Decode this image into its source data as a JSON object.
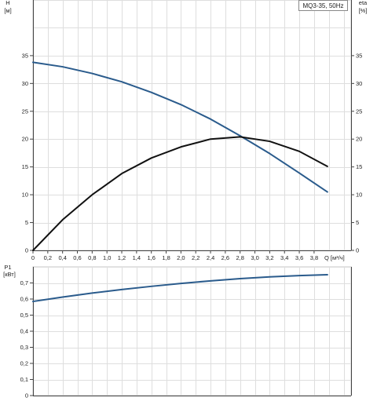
{
  "chart_data": [
    {
      "type": "line",
      "title": "",
      "legend_box": "MQ3-35, 50Hz",
      "x": {
        "label": "Q [м³/ч]",
        "min": 0,
        "max": 4.3,
        "ticks": [
          0,
          0.2,
          0.4,
          0.6,
          0.8,
          1.0,
          1.2,
          1.4,
          1.6,
          1.8,
          2.0,
          2.2,
          2.4,
          2.6,
          2.8,
          3.0,
          3.2,
          3.4,
          3.6,
          3.8
        ],
        "tick_labels": [
          "0",
          "0,2",
          "0,4",
          "0,6",
          "0,8",
          "1,0",
          "1,2",
          "1,4",
          "1,6",
          "1,8",
          "2,0",
          "2,2",
          "2,4",
          "2,6",
          "2,8",
          "3,0",
          "3,2",
          "3,4",
          "3,6",
          "3,8"
        ]
      },
      "y_left": {
        "label_top": "H",
        "label_unit": "[м]",
        "min": 0,
        "max": 45,
        "ticks": [
          0,
          5,
          10,
          15,
          20,
          25,
          30,
          35
        ],
        "tick_labels": [
          "0",
          "5",
          "10",
          "15",
          "20",
          "25",
          "30",
          "35"
        ]
      },
      "y_right": {
        "label_top": "eta",
        "label_unit": "[%]",
        "min": 0,
        "max": 45,
        "ticks": [
          0,
          5,
          10,
          15,
          20,
          25,
          30,
          35
        ],
        "tick_labels": [
          "0",
          "5",
          "10",
          "15",
          "20",
          "25",
          "30",
          "35"
        ]
      },
      "grid": true,
      "series": [
        {
          "key": "H",
          "axis": "left",
          "color": "#2a5b8c",
          "points": [
            [
              0,
              33.8
            ],
            [
              0.4,
              33.0
            ],
            [
              0.8,
              31.8
            ],
            [
              1.2,
              30.3
            ],
            [
              1.6,
              28.4
            ],
            [
              2.0,
              26.2
            ],
            [
              2.4,
              23.6
            ],
            [
              2.8,
              20.6
            ],
            [
              3.2,
              17.4
            ],
            [
              3.6,
              13.9
            ],
            [
              3.98,
              10.5
            ]
          ]
        },
        {
          "key": "eta",
          "axis": "right",
          "color": "#111111",
          "points": [
            [
              0,
              0.0
            ],
            [
              0.4,
              5.5
            ],
            [
              0.8,
              10.0
            ],
            [
              1.2,
              13.8
            ],
            [
              1.6,
              16.6
            ],
            [
              2.0,
              18.6
            ],
            [
              2.4,
              20.0
            ],
            [
              2.8,
              20.4
            ],
            [
              3.2,
              19.6
            ],
            [
              3.6,
              17.8
            ],
            [
              3.98,
              15.1
            ]
          ]
        }
      ]
    },
    {
      "type": "line",
      "title": "",
      "x": {
        "min": 0,
        "max": 4.3
      },
      "y_left": {
        "label_top": "P1",
        "label_unit": "[кВт]",
        "min": 0,
        "max": 0.8,
        "ticks": [
          0,
          0.1,
          0.2,
          0.3,
          0.4,
          0.5,
          0.6,
          0.7
        ],
        "tick_labels": [
          "0",
          "0,1",
          "0,2",
          "0,3",
          "0,4",
          "0,5",
          "0,6",
          "0,7"
        ]
      },
      "grid": true,
      "series": [
        {
          "key": "P1",
          "axis": "left",
          "color": "#2a5b8c",
          "points": [
            [
              0,
              0.585
            ],
            [
              0.4,
              0.612
            ],
            [
              0.8,
              0.637
            ],
            [
              1.2,
              0.659
            ],
            [
              1.6,
              0.679
            ],
            [
              2.0,
              0.697
            ],
            [
              2.4,
              0.713
            ],
            [
              2.8,
              0.727
            ],
            [
              3.2,
              0.738
            ],
            [
              3.6,
              0.746
            ],
            [
              3.98,
              0.751
            ]
          ]
        }
      ]
    }
  ]
}
